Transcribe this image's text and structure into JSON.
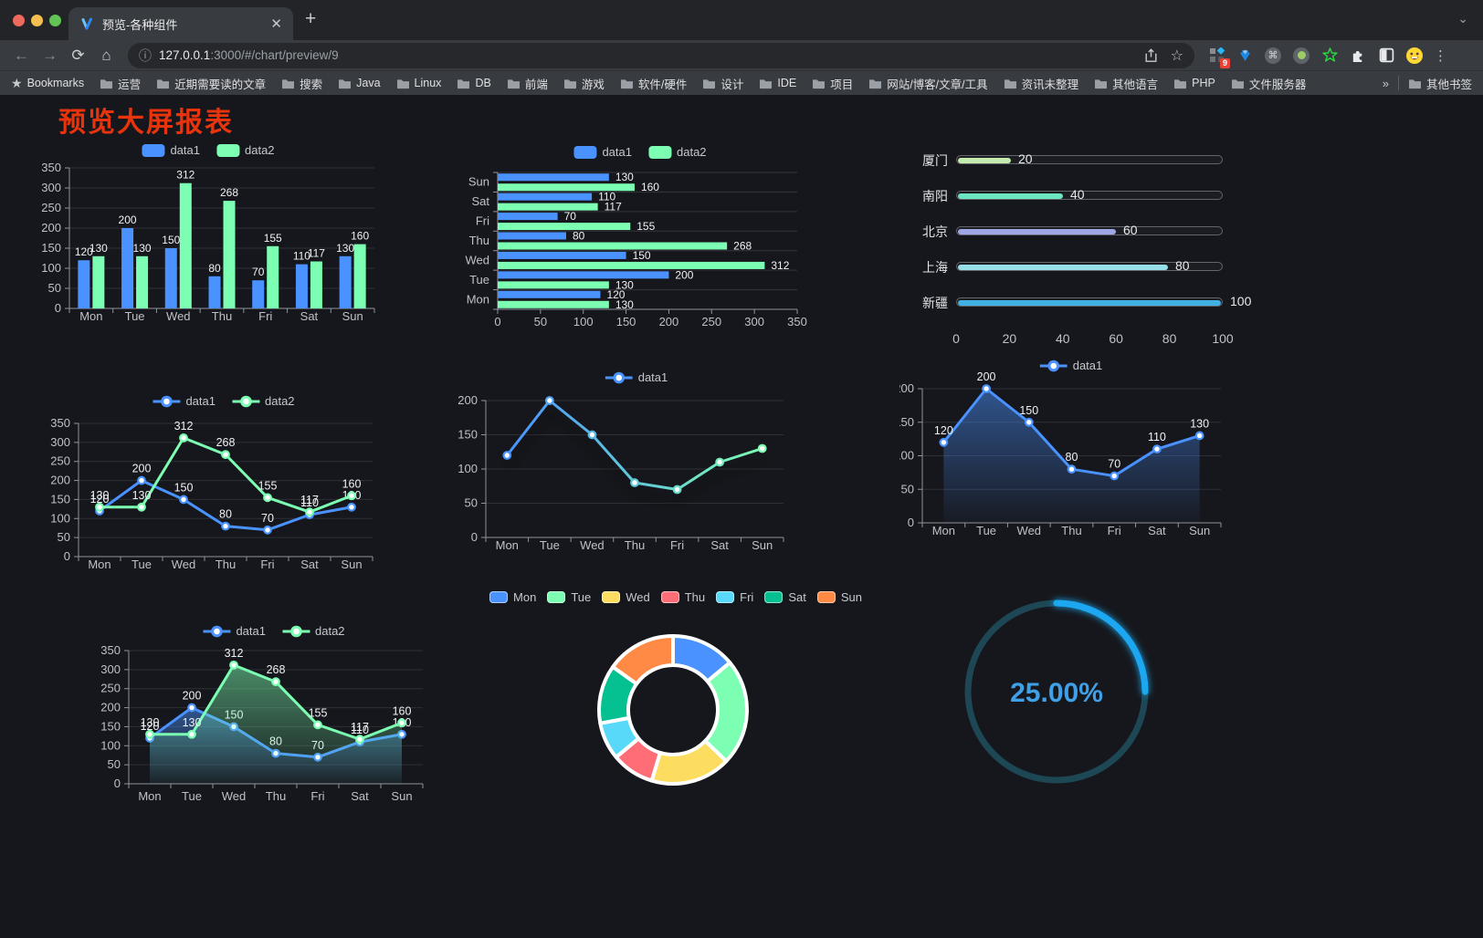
{
  "browser": {
    "tab_title": "预览-各种组件",
    "url_host": "127.0.0.1",
    "url_rest": ":3000/#/chart/preview/9",
    "bookmarks_label": "Bookmarks",
    "bookmarks": [
      "运营",
      "近期需要读的文章",
      "搜索",
      "Java",
      "Linux",
      "DB",
      "前端",
      "游戏",
      "软件/硬件",
      "设计",
      "IDE",
      "项目",
      "网站/博客/文章/工具",
      "资讯未整理",
      "其他语言",
      "PHP",
      "文件服务器"
    ],
    "other_bookmarks": "其他书签",
    "extension_badge": "9"
  },
  "icons": {
    "back": "←",
    "forward": "→",
    "reload": "⟳",
    "home": "⌂",
    "info": "ⓘ",
    "star": "☆",
    "kebab": "⋮",
    "close": "✕",
    "new_tab": "+",
    "chevron_down": "⌄",
    "bookmarks_star": "★",
    "overflow": "»",
    "command": "⌘"
  },
  "page": {
    "title": "预览大屏报表"
  },
  "chart_data": [
    {
      "type": "bar",
      "categories": [
        "Mon",
        "Tue",
        "Wed",
        "Thu",
        "Fri",
        "Sat",
        "Sun"
      ],
      "series": [
        {
          "name": "data1",
          "color": "#4992ff",
          "values": [
            120,
            200,
            150,
            80,
            70,
            110,
            130
          ]
        },
        {
          "name": "data2",
          "color": "#7cffb2",
          "values": [
            130,
            130,
            312,
            268,
            155,
            117,
            160
          ]
        }
      ],
      "ylim": [
        0,
        350
      ],
      "ytick": 50,
      "legend_position": "top",
      "grid": true,
      "show_labels": true
    },
    {
      "type": "bar-horizontal",
      "categories": [
        "Mon",
        "Tue",
        "Wed",
        "Thu",
        "Fri",
        "Sat",
        "Sun"
      ],
      "series": [
        {
          "name": "data1",
          "color": "#4992ff",
          "values": [
            120,
            200,
            150,
            80,
            70,
            110,
            130
          ]
        },
        {
          "name": "data2",
          "color": "#7cffb2",
          "values": [
            130,
            130,
            312,
            268,
            155,
            117,
            160
          ]
        }
      ],
      "xlim": [
        0,
        350
      ],
      "xtick": 50,
      "legend_position": "top",
      "show_labels": true
    },
    {
      "type": "progress-bars",
      "items": [
        {
          "label": "厦门",
          "value": 20,
          "color": "#c4ebad"
        },
        {
          "label": "南阳",
          "value": 40,
          "color": "#6be6c1"
        },
        {
          "label": "北京",
          "value": 60,
          "color": "#a0a7e6"
        },
        {
          "label": "上海",
          "value": 80,
          "color": "#96dee8"
        },
        {
          "label": "新疆",
          "value": 100,
          "color": "#3fb1e3"
        }
      ],
      "xlim": [
        0,
        100
      ],
      "ticks": [
        0,
        20,
        40,
        60,
        80,
        100
      ]
    },
    {
      "type": "line",
      "categories": [
        "Mon",
        "Tue",
        "Wed",
        "Thu",
        "Fri",
        "Sat",
        "Sun"
      ],
      "series": [
        {
          "name": "data1",
          "color": "#4992ff",
          "values": [
            120,
            200,
            150,
            80,
            70,
            110,
            130
          ]
        },
        {
          "name": "data2",
          "color": "#7cffb2",
          "values": [
            130,
            130,
            312,
            268,
            155,
            117,
            160
          ]
        }
      ],
      "ylim": [
        0,
        350
      ],
      "ytick": 50,
      "legend_position": "top",
      "show_labels": true
    },
    {
      "type": "line",
      "categories": [
        "Mon",
        "Tue",
        "Wed",
        "Thu",
        "Fri",
        "Sat",
        "Sun"
      ],
      "series": [
        {
          "name": "data1",
          "gradient": [
            "#4992ff",
            "#7cffb2"
          ],
          "values": [
            120,
            200,
            150,
            80,
            70,
            110,
            130
          ]
        }
      ],
      "ylim": [
        0,
        200
      ],
      "ytick": 50,
      "legend_position": "top",
      "show_labels": false
    },
    {
      "type": "area",
      "categories": [
        "Mon",
        "Tue",
        "Wed",
        "Thu",
        "Fri",
        "Sat",
        "Sun"
      ],
      "series": [
        {
          "name": "data1",
          "color": "#4992ff",
          "values": [
            120,
            200,
            150,
            80,
            70,
            110,
            130
          ]
        }
      ],
      "ylim": [
        0,
        200
      ],
      "ytick": 50,
      "legend_position": "top",
      "show_labels": true
    },
    {
      "type": "area",
      "categories": [
        "Mon",
        "Tue",
        "Wed",
        "Thu",
        "Fri",
        "Sat",
        "Sun"
      ],
      "series": [
        {
          "name": "data1",
          "color": "#4992ff",
          "values": [
            120,
            200,
            150,
            80,
            70,
            110,
            130
          ]
        },
        {
          "name": "data2",
          "color": "#7cffb2",
          "values": [
            130,
            130,
            312,
            268,
            155,
            117,
            160
          ]
        }
      ],
      "ylim": [
        0,
        350
      ],
      "ytick": 50,
      "legend_position": "top",
      "show_labels": true
    },
    {
      "type": "pie",
      "donut": true,
      "categories": [
        "Mon",
        "Tue",
        "Wed",
        "Thu",
        "Fri",
        "Sat",
        "Sun"
      ],
      "values": [
        120,
        200,
        150,
        80,
        70,
        110,
        130
      ],
      "colors": [
        "#4992ff",
        "#7cffb2",
        "#fddd60",
        "#ff6e76",
        "#58d9f9",
        "#05c091",
        "#ff8a45"
      ],
      "legend_position": "top"
    },
    {
      "type": "gauge",
      "value": 25,
      "display": "25.00%",
      "color": "#1aa7f0",
      "track_color": "#1d4754",
      "text_color": "#3fa0e8",
      "range": [
        0,
        100
      ]
    }
  ]
}
